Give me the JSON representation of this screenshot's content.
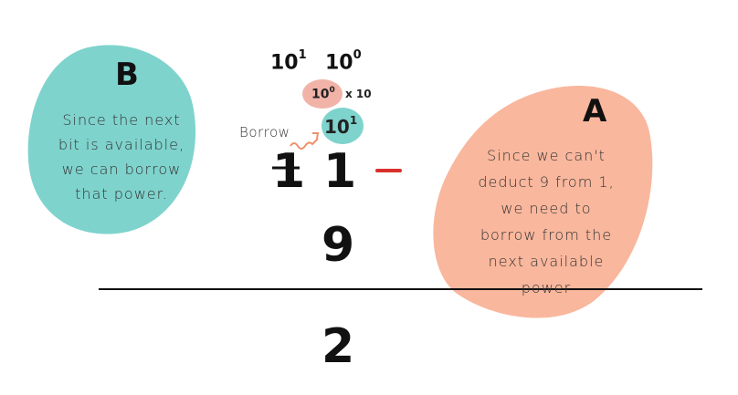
{
  "colors": {
    "teal": "#7fd3cd",
    "salmon": "#f9b79d",
    "pink": "#f1b3a8",
    "minus_red": "#d9302c",
    "arrow_orange": "#f0906a",
    "line": "#111111"
  },
  "blob_b": {
    "letter": "B",
    "lines": [
      "Since the next",
      "bit is available,",
      "we can borrow",
      "that power."
    ]
  },
  "blob_a": {
    "letter": "A",
    "lines": [
      "Since we can't",
      "deduct 9 from 1,",
      "we need to",
      "borrow from the",
      "next available",
      "power"
    ]
  },
  "place_values": {
    "tens": {
      "base": "10",
      "exp": "1"
    },
    "ones": {
      "base": "10",
      "exp": "0"
    }
  },
  "bubble_small": {
    "base": "10",
    "exp": "0",
    "multiplier": "x 10"
  },
  "bubble_large": {
    "base": "10",
    "exp": "1"
  },
  "borrow_label": "Borrow",
  "problem": {
    "top_tens": "1",
    "top_ones": "1",
    "operator": "−",
    "bottom_ones": "9",
    "result_ones": "2"
  },
  "icons": [
    "strikethrough-mark",
    "borrow-arrow-icon",
    "minus-sign"
  ]
}
